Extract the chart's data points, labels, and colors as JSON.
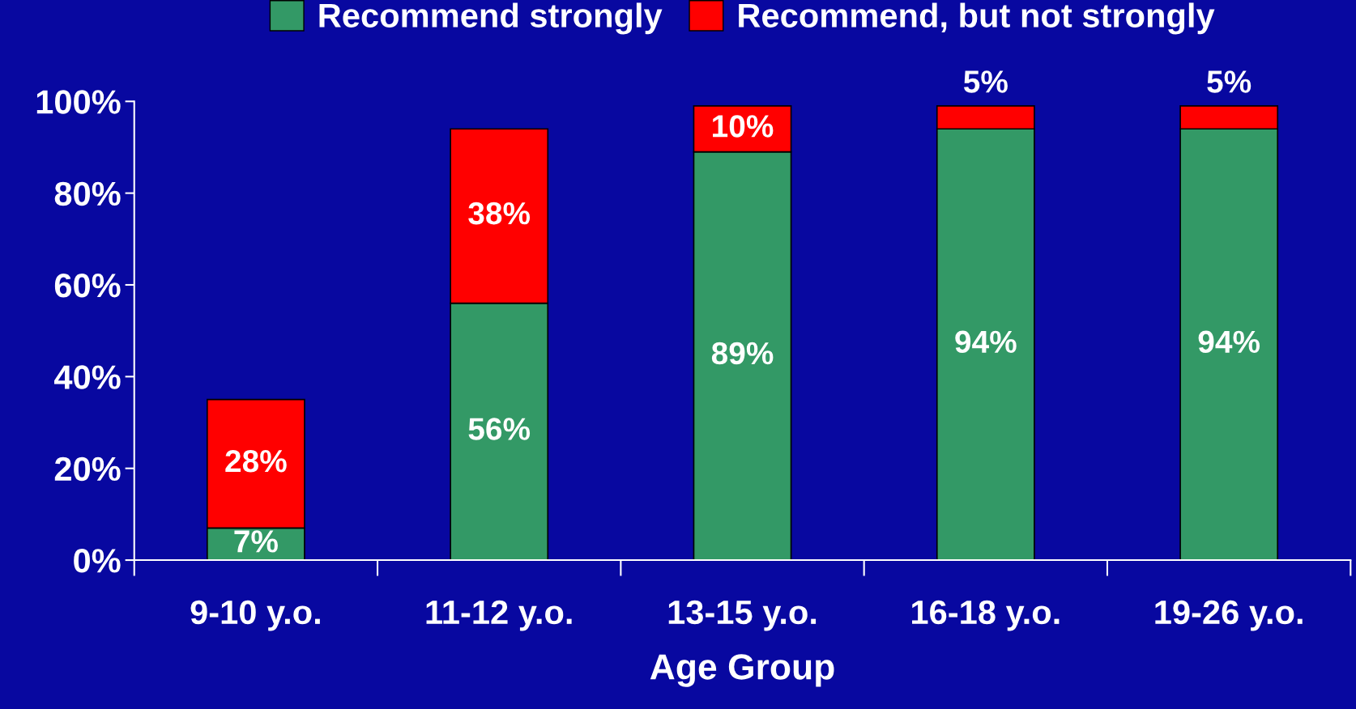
{
  "chart_data": {
    "type": "bar",
    "stacked": true,
    "xlabel": "Age Group",
    "legend": "top",
    "categories": [
      "9-10 y.o.",
      "11-12 y.o.",
      "13-15 y.o.",
      "16-18 y.o.",
      "19-26 y.o."
    ],
    "series": [
      {
        "name": "Recommend strongly",
        "color": "#339966",
        "values": [
          7,
          56,
          89,
          94,
          94
        ],
        "value_labels": [
          "7%",
          "56%",
          "89%",
          "94%",
          "94%"
        ]
      },
      {
        "name": "Recommend, but not strongly",
        "color": "#ff0000",
        "values": [
          28,
          38,
          10,
          5,
          5
        ],
        "value_labels": [
          "28%",
          "38%",
          "10%",
          "5%",
          "5%"
        ]
      }
    ],
    "ylim": [
      0,
      100
    ],
    "yticks": [
      {
        "value": 0,
        "label": "0%"
      },
      {
        "value": 20,
        "label": "20%"
      },
      {
        "value": 40,
        "label": "40%"
      },
      {
        "value": 60,
        "label": "60%"
      },
      {
        "value": 80,
        "label": "80%"
      },
      {
        "value": 100,
        "label": "100%"
      }
    ],
    "grid": false
  }
}
